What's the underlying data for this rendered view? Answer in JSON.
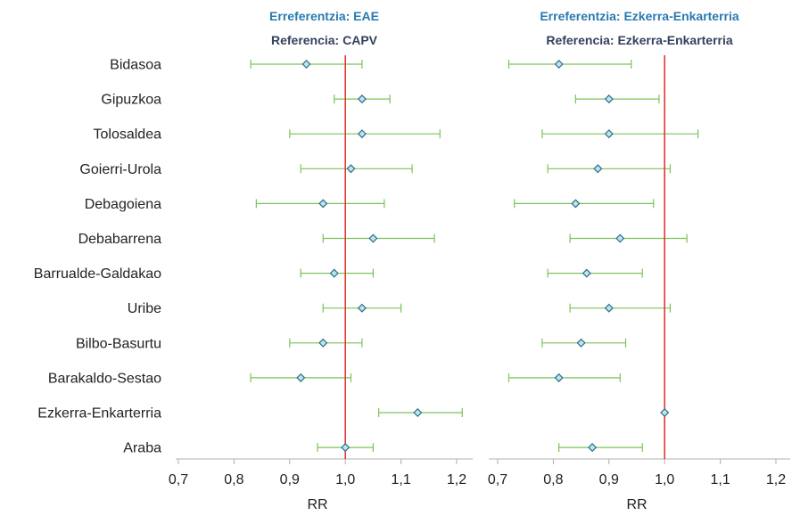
{
  "chart_data": [
    {
      "type": "scatter",
      "title": "Erreferentzia: EAE",
      "subtitle": "Referencia: CAPV",
      "xlabel": "RR",
      "xlim": [
        0.7,
        1.2
      ],
      "xticks": [
        0.7,
        0.8,
        0.9,
        1.0,
        1.1,
        1.2
      ],
      "xtick_labels": [
        "0,7",
        "0,8",
        "0,9",
        "1,0",
        "1,1",
        "1,2"
      ],
      "reference_line": 1.0,
      "categories": [
        "Bidasoa",
        "Gipuzkoa",
        "Tolosaldea",
        "Goierri-Urola",
        "Debagoiena",
        "Debabarrena",
        "Barrualde-Galdakao",
        "Uribe",
        "Bilbo-Basurtu",
        "Barakaldo-Sestao",
        "Ezkerra-Enkarterria",
        "Araba"
      ],
      "values": [
        0.93,
        1.03,
        1.03,
        1.01,
        0.96,
        1.05,
        0.98,
        1.03,
        0.96,
        0.92,
        1.13,
        1.0
      ],
      "lower": [
        0.83,
        0.98,
        0.9,
        0.92,
        0.84,
        0.96,
        0.92,
        0.96,
        0.9,
        0.83,
        1.06,
        0.95
      ],
      "upper": [
        1.03,
        1.08,
        1.17,
        1.12,
        1.07,
        1.16,
        1.05,
        1.1,
        1.03,
        1.01,
        1.21,
        1.05
      ]
    },
    {
      "type": "scatter",
      "title": "Erreferentzia: Ezkerra-Enkarterria",
      "subtitle": "Referencia: Ezkerra-Enkarterria",
      "xlabel": "RR",
      "xlim": [
        0.7,
        1.2
      ],
      "xticks": [
        0.7,
        0.8,
        0.9,
        1.0,
        1.1,
        1.2
      ],
      "xtick_labels": [
        "0,7",
        "0,8",
        "0,9",
        "1,0",
        "1,1",
        "1,2"
      ],
      "reference_line": 1.0,
      "categories": [
        "Bidasoa",
        "Gipuzkoa",
        "Tolosaldea",
        "Goierri-Urola",
        "Debagoiena",
        "Debabarrena",
        "Barrualde-Galdakao",
        "Uribe",
        "Bilbo-Basurtu",
        "Barakaldo-Sestao",
        "Ezkerra-Enkarterria",
        "Araba"
      ],
      "values": [
        0.81,
        0.9,
        0.9,
        0.88,
        0.84,
        0.92,
        0.86,
        0.9,
        0.85,
        0.81,
        1.0,
        0.87
      ],
      "lower": [
        0.72,
        0.84,
        0.78,
        0.79,
        0.73,
        0.83,
        0.79,
        0.83,
        0.78,
        0.72,
        1.0,
        0.81
      ],
      "upper": [
        0.94,
        0.99,
        1.06,
        1.01,
        0.98,
        1.04,
        0.96,
        1.01,
        0.93,
        0.92,
        1.0,
        0.96
      ]
    }
  ]
}
